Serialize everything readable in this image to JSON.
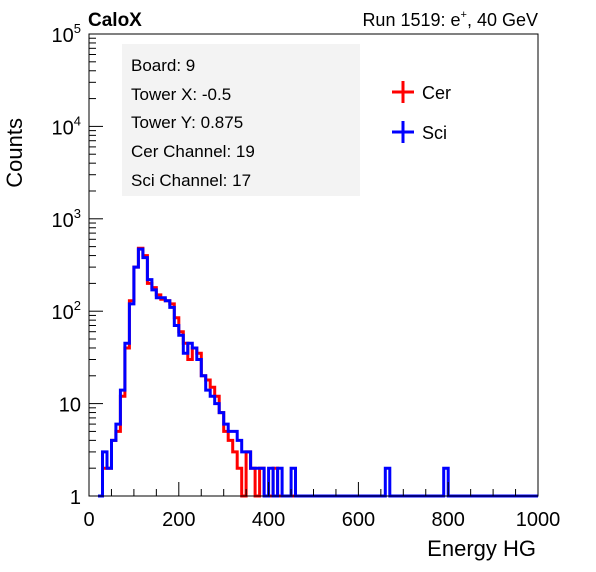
{
  "header": {
    "experiment": "CaloX",
    "run_prefix": "Run 1519: e",
    "run_sup": "+",
    "run_suffix": ", 40 GeV"
  },
  "info_box": {
    "lines": [
      "Board: 9",
      "Tower X: -0.5",
      "Tower Y: 0.875",
      "Cer Channel: 19",
      "Sci Channel: 17"
    ]
  },
  "legend": {
    "placement": "top-right"
  },
  "chart_data": {
    "type": "line",
    "title": "",
    "xlabel": "Energy HG",
    "ylabel": "Counts",
    "xlim": [
      0,
      1000
    ],
    "ylim": [
      1,
      100000
    ],
    "yscale": "log",
    "x_ticks": [
      0,
      200,
      400,
      600,
      800,
      1000
    ],
    "y_ticks": [
      {
        "value": 1,
        "base": "1",
        "exp": ""
      },
      {
        "value": 10,
        "base": "10",
        "exp": ""
      },
      {
        "value": 100,
        "base": "10",
        "exp": "2"
      },
      {
        "value": 1000,
        "base": "10",
        "exp": "3"
      },
      {
        "value": 10000,
        "base": "10",
        "exp": "4"
      },
      {
        "value": 100000,
        "base": "10",
        "exp": "5"
      }
    ],
    "series": [
      {
        "name": "Cer",
        "color": "#ff0000",
        "x": [
          20,
          30,
          40,
          50,
          60,
          70,
          80,
          90,
          100,
          110,
          120,
          130,
          140,
          150,
          160,
          170,
          180,
          190,
          200,
          210,
          220,
          230,
          240,
          250,
          260,
          270,
          280,
          290,
          300,
          310,
          320,
          330,
          340,
          350,
          360,
          370,
          380,
          390,
          400,
          410,
          420,
          430,
          440,
          450,
          460,
          470,
          480,
          490,
          500
        ],
        "values": [
          1,
          2,
          2,
          4,
          5,
          12,
          40,
          130,
          300,
          480,
          400,
          200,
          180,
          150,
          135,
          130,
          120,
          85,
          60,
          45,
          30,
          40,
          35,
          20,
          18,
          15,
          12,
          8,
          5,
          4,
          3,
          2,
          1,
          3,
          2,
          1,
          2,
          1,
          1,
          2,
          1,
          1,
          1,
          1,
          1,
          1,
          1,
          1,
          1
        ]
      },
      {
        "name": "Sci",
        "color": "#0000ff",
        "x": [
          20,
          30,
          40,
          50,
          60,
          70,
          80,
          90,
          100,
          110,
          120,
          130,
          140,
          150,
          160,
          170,
          180,
          190,
          200,
          210,
          220,
          230,
          240,
          250,
          260,
          270,
          280,
          290,
          300,
          310,
          320,
          330,
          340,
          350,
          360,
          370,
          380,
          390,
          400,
          410,
          420,
          430,
          440,
          450,
          460,
          470,
          480,
          490,
          500,
          510,
          520,
          530,
          540,
          550,
          560,
          570,
          580,
          590,
          600,
          610,
          620,
          630,
          640,
          650,
          660,
          670,
          680,
          690,
          700,
          710,
          720,
          730,
          740,
          750,
          760,
          770,
          780,
          790,
          800,
          810,
          820,
          830,
          840,
          850,
          860,
          870,
          880,
          890,
          900,
          910,
          920,
          930,
          940,
          950,
          960,
          970,
          980,
          990,
          1000
        ],
        "values": [
          1,
          3,
          2,
          4,
          6,
          14,
          45,
          120,
          300,
          470,
          380,
          220,
          170,
          140,
          140,
          130,
          110,
          70,
          55,
          35,
          45,
          40,
          30,
          20,
          14,
          12,
          10,
          8,
          6,
          5,
          5,
          4,
          3,
          3,
          2,
          2,
          2,
          1,
          2,
          1,
          2,
          1,
          1,
          2,
          1,
          1,
          1,
          1,
          1,
          1,
          1,
          1,
          1,
          1,
          1,
          1,
          1,
          1,
          1,
          1,
          1,
          1,
          1,
          1,
          2,
          1,
          1,
          1,
          1,
          1,
          1,
          1,
          1,
          1,
          1,
          1,
          1,
          2,
          1,
          1,
          1,
          1,
          1,
          1,
          1,
          1,
          1,
          1,
          1,
          1,
          1,
          1,
          1,
          1,
          1,
          1,
          1,
          1,
          1
        ]
      }
    ]
  }
}
